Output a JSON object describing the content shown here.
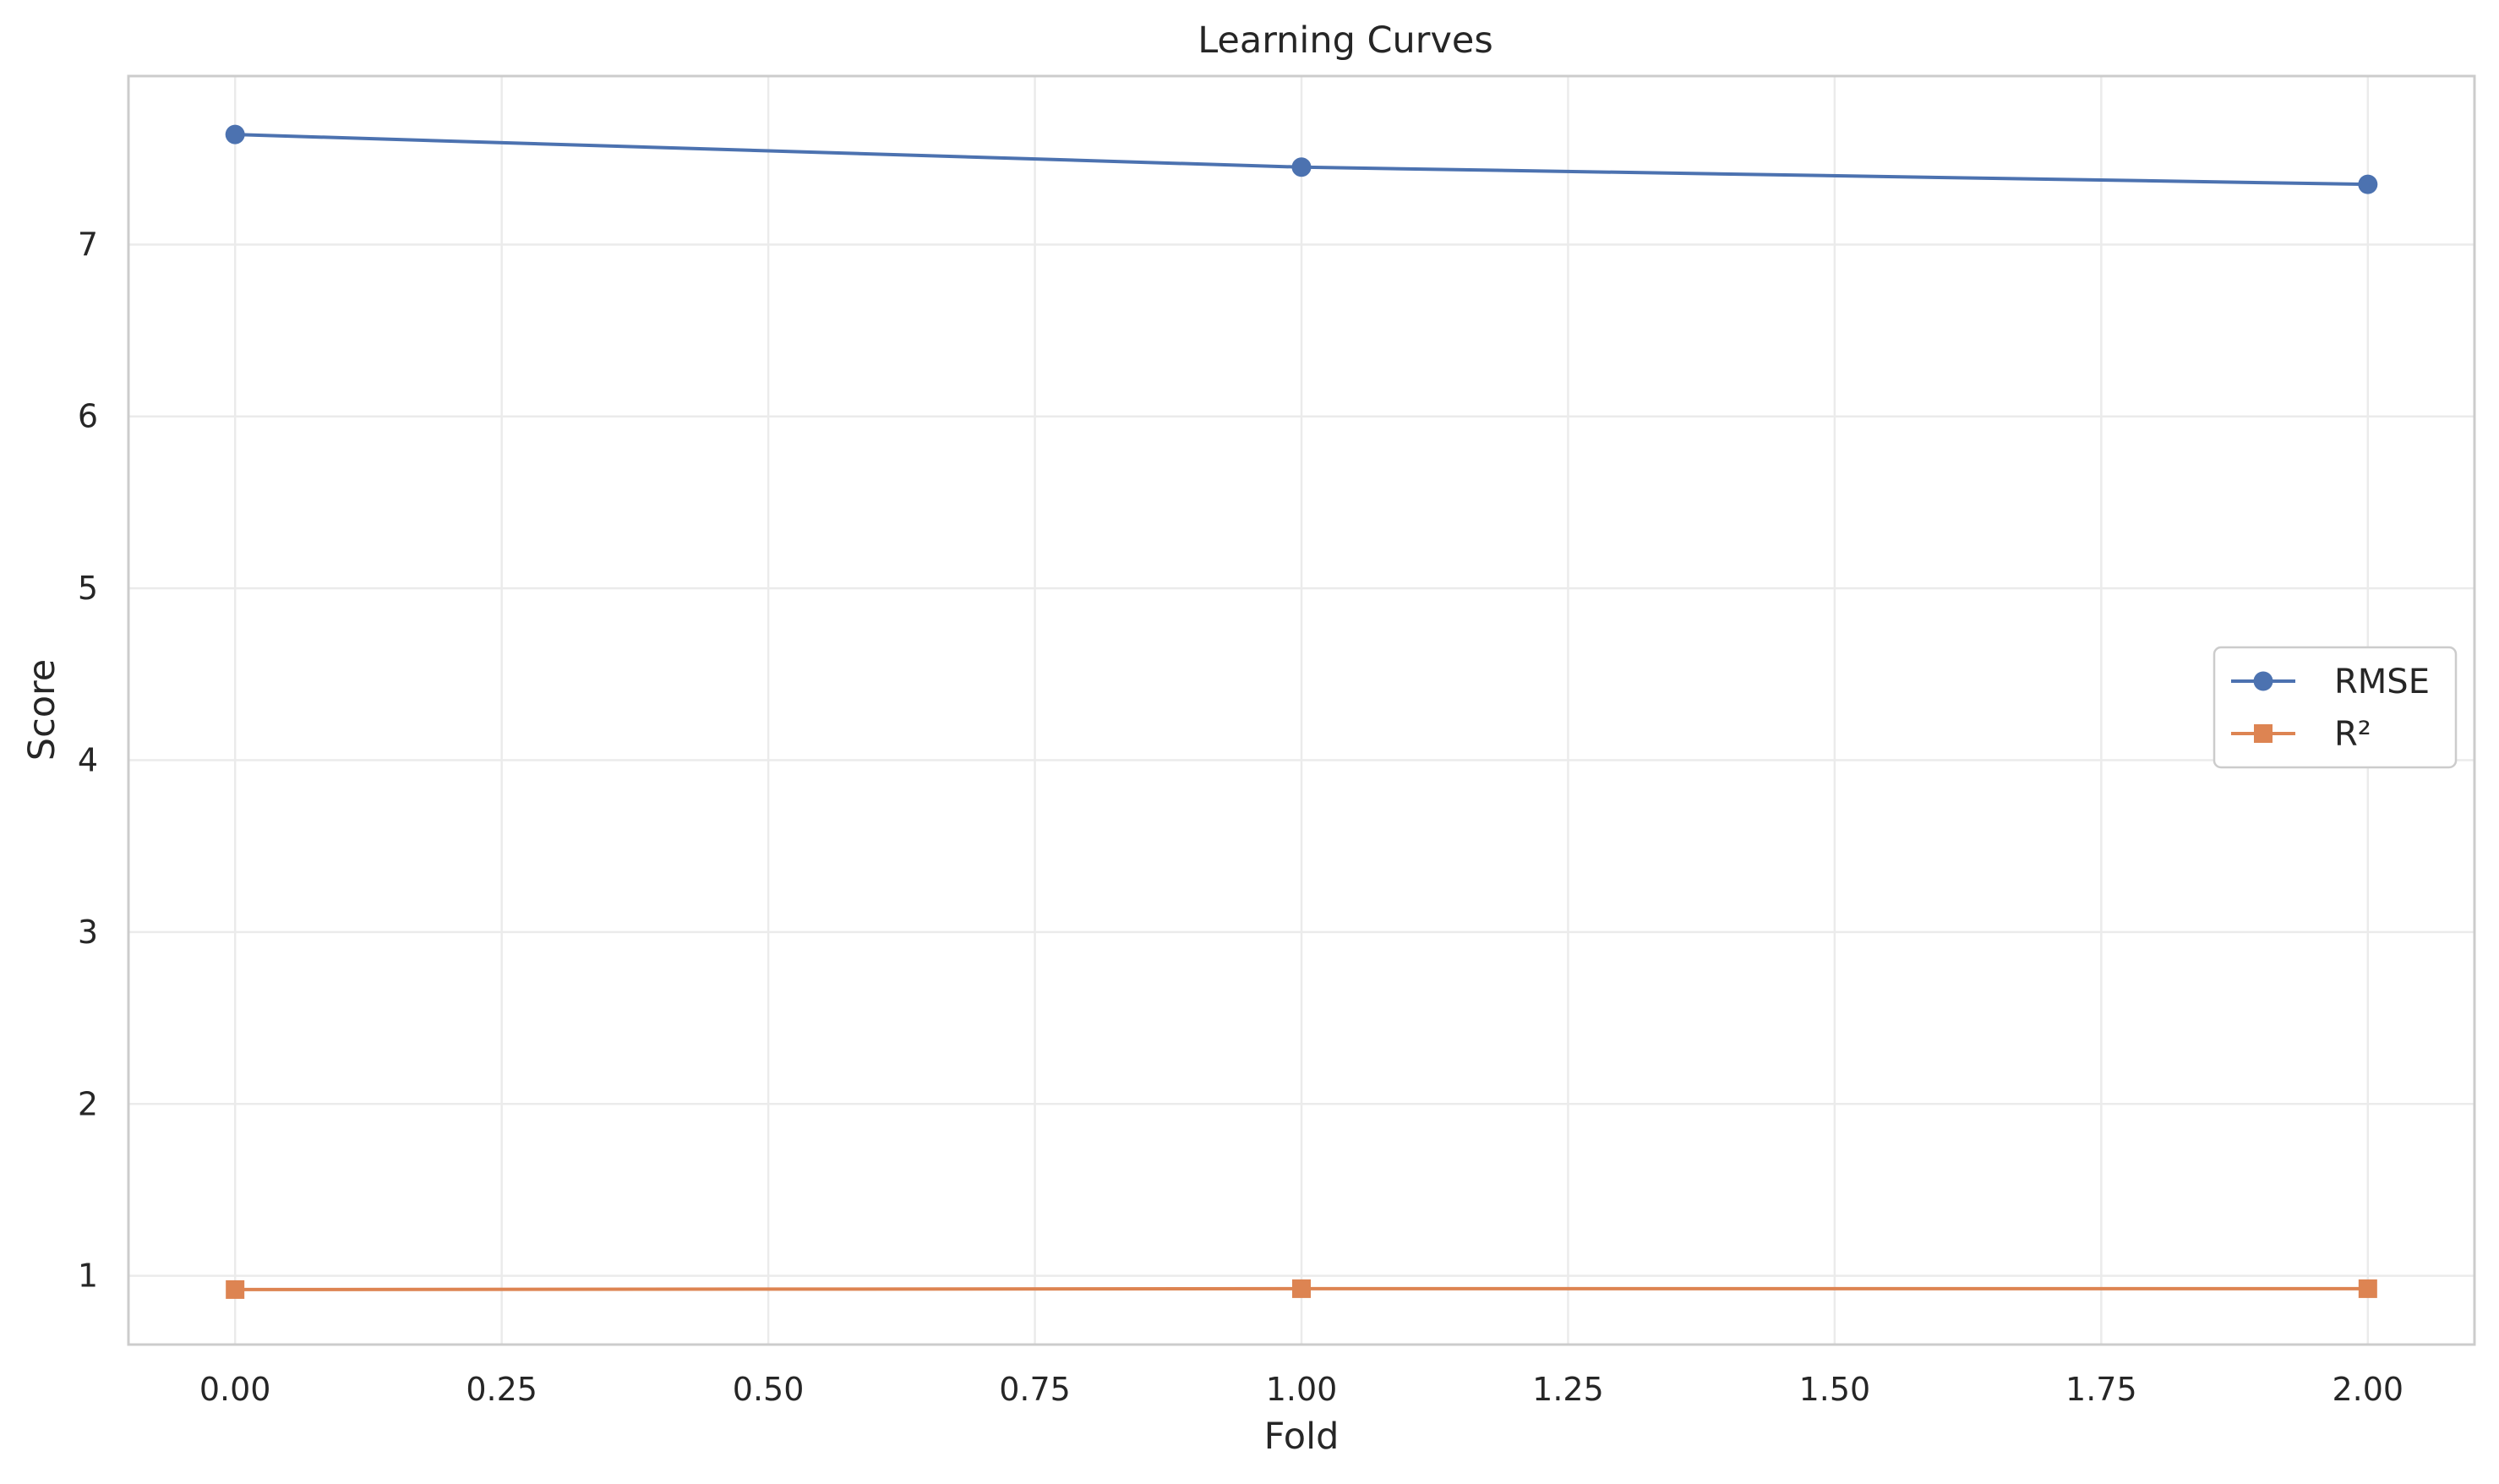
{
  "chart_data": {
    "type": "line",
    "title": "Learning Curves",
    "xlabel": "Fold",
    "ylabel": "Score",
    "xlim": [
      -0.1,
      2.1
    ],
    "ylim": [
      0.6,
      7.98
    ],
    "x_ticks": [
      0.0,
      0.25,
      0.5,
      0.75,
      1.0,
      1.25,
      1.5,
      1.75,
      2.0
    ],
    "x_tick_labels": [
      "0.00",
      "0.25",
      "0.50",
      "0.75",
      "1.00",
      "1.25",
      "1.50",
      "1.75",
      "2.00"
    ],
    "y_ticks": [
      1,
      2,
      3,
      4,
      5,
      6,
      7
    ],
    "y_tick_labels": [
      "1",
      "2",
      "3",
      "4",
      "5",
      "6",
      "7"
    ],
    "grid": true,
    "legend_position": "center-right",
    "x": [
      0,
      1,
      2
    ],
    "series": [
      {
        "name": "RMSE",
        "values": [
          7.64,
          7.45,
          7.35
        ],
        "color": "#4c72b0",
        "marker": "circle"
      },
      {
        "name": "R²",
        "values": [
          0.92,
          0.925,
          0.925
        ],
        "color": "#dd8452",
        "marker": "square"
      }
    ]
  }
}
